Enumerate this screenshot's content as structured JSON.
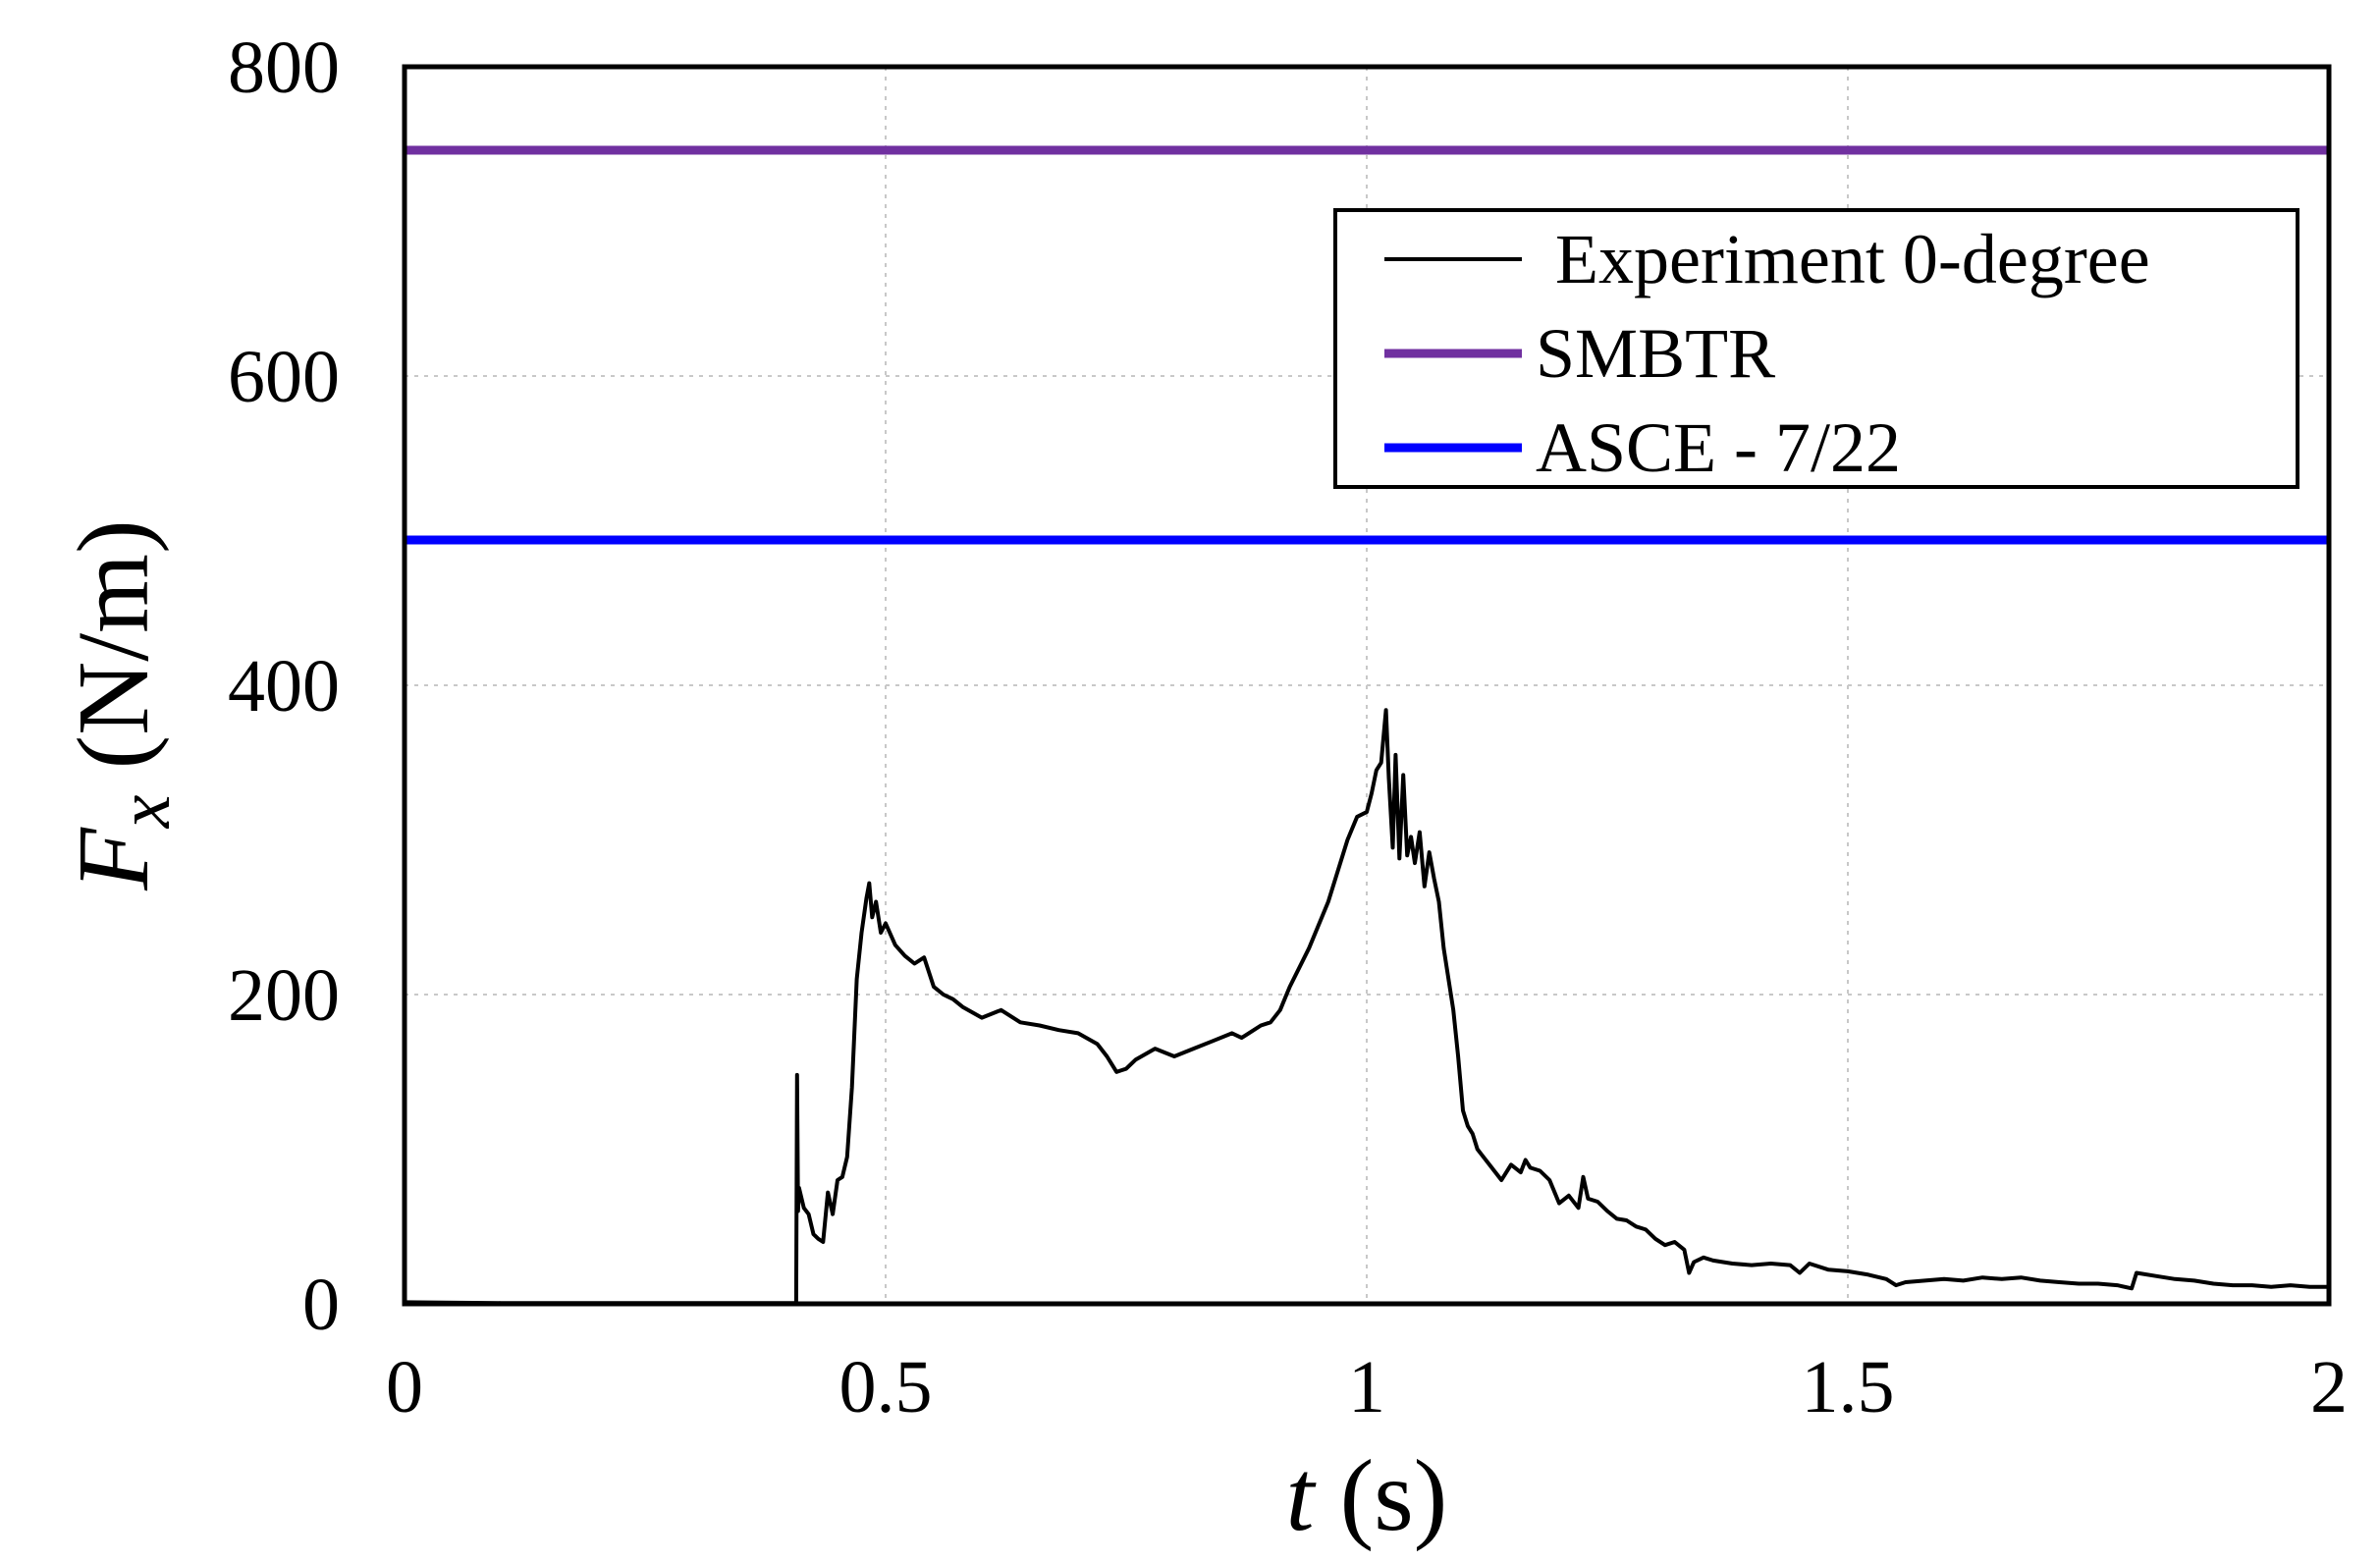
{
  "chart_data": {
    "type": "line",
    "xlabel": {
      "var": "t",
      "unit": " (s)"
    },
    "ylabel": {
      "var": "F",
      "sub": "x",
      "unit": " (N/m)"
    },
    "xlim": [
      0,
      2
    ],
    "ylim": [
      0,
      800
    ],
    "xticks": [
      0,
      0.5,
      1,
      1.5,
      2
    ],
    "xtick_labels": [
      "0",
      "0.5",
      "1",
      "1.5",
      "2"
    ],
    "yticks": [
      0,
      200,
      400,
      600,
      800
    ],
    "ytick_labels": [
      "0",
      "200",
      "400",
      "600",
      "800"
    ],
    "grid": true,
    "legend_position": "top-right",
    "series": [
      {
        "name": "Experiment 0-degree",
        "color": "#000000",
        "style": "line",
        "points": [
          [
            0,
            1
          ],
          [
            0.1,
            0.5
          ],
          [
            0.2,
            0.5
          ],
          [
            0.3,
            0.5
          ],
          [
            0.406,
            0.5
          ],
          [
            0.407,
            0
          ],
          [
            0.408,
            148
          ],
          [
            0.409,
            60
          ],
          [
            0.41,
            75
          ],
          [
            0.415,
            62
          ],
          [
            0.42,
            58
          ],
          [
            0.425,
            45
          ],
          [
            0.43,
            42
          ],
          [
            0.435,
            40
          ],
          [
            0.44,
            72
          ],
          [
            0.445,
            58
          ],
          [
            0.45,
            80
          ],
          [
            0.455,
            82
          ],
          [
            0.46,
            95
          ],
          [
            0.465,
            140
          ],
          [
            0.47,
            210
          ],
          [
            0.475,
            240
          ],
          [
            0.48,
            262
          ],
          [
            0.483,
            272
          ],
          [
            0.486,
            250
          ],
          [
            0.49,
            260
          ],
          [
            0.495,
            240
          ],
          [
            0.5,
            246
          ],
          [
            0.51,
            232
          ],
          [
            0.52,
            225
          ],
          [
            0.53,
            220
          ],
          [
            0.54,
            224
          ],
          [
            0.55,
            205
          ],
          [
            0.56,
            200
          ],
          [
            0.57,
            197
          ],
          [
            0.58,
            192
          ],
          [
            0.6,
            185
          ],
          [
            0.62,
            190
          ],
          [
            0.64,
            182
          ],
          [
            0.66,
            180
          ],
          [
            0.68,
            177
          ],
          [
            0.7,
            175
          ],
          [
            0.72,
            168
          ],
          [
            0.73,
            160
          ],
          [
            0.74,
            150
          ],
          [
            0.75,
            152
          ],
          [
            0.76,
            158
          ],
          [
            0.78,
            165
          ],
          [
            0.8,
            160
          ],
          [
            0.82,
            165
          ],
          [
            0.84,
            170
          ],
          [
            0.86,
            175
          ],
          [
            0.87,
            172
          ],
          [
            0.88,
            176
          ],
          [
            0.89,
            180
          ],
          [
            0.9,
            182
          ],
          [
            0.91,
            190
          ],
          [
            0.92,
            205
          ],
          [
            0.94,
            230
          ],
          [
            0.96,
            260
          ],
          [
            0.97,
            280
          ],
          [
            0.98,
            300
          ],
          [
            0.99,
            315
          ],
          [
            1.0,
            318
          ],
          [
            1.005,
            330
          ],
          [
            1.01,
            345
          ],
          [
            1.015,
            350
          ],
          [
            1.02,
            384
          ],
          [
            1.023,
            340
          ],
          [
            1.027,
            295
          ],
          [
            1.03,
            355
          ],
          [
            1.034,
            288
          ],
          [
            1.038,
            342
          ],
          [
            1.042,
            290
          ],
          [
            1.046,
            302
          ],
          [
            1.05,
            285
          ],
          [
            1.055,
            305
          ],
          [
            1.06,
            270
          ],
          [
            1.065,
            292
          ],
          [
            1.07,
            275
          ],
          [
            1.075,
            260
          ],
          [
            1.08,
            230
          ],
          [
            1.085,
            210
          ],
          [
            1.09,
            190
          ],
          [
            1.095,
            160
          ],
          [
            1.1,
            125
          ],
          [
            1.105,
            115
          ],
          [
            1.11,
            110
          ],
          [
            1.115,
            100
          ],
          [
            1.12,
            96
          ],
          [
            1.13,
            88
          ],
          [
            1.14,
            80
          ],
          [
            1.15,
            90
          ],
          [
            1.16,
            85
          ],
          [
            1.165,
            93
          ],
          [
            1.17,
            88
          ],
          [
            1.18,
            86
          ],
          [
            1.19,
            80
          ],
          [
            1.2,
            65
          ],
          [
            1.21,
            70
          ],
          [
            1.22,
            62
          ],
          [
            1.225,
            82
          ],
          [
            1.23,
            68
          ],
          [
            1.24,
            66
          ],
          [
            1.25,
            60
          ],
          [
            1.26,
            55
          ],
          [
            1.27,
            54
          ],
          [
            1.28,
            50
          ],
          [
            1.29,
            48
          ],
          [
            1.3,
            42
          ],
          [
            1.31,
            38
          ],
          [
            1.32,
            40
          ],
          [
            1.33,
            35
          ],
          [
            1.335,
            20
          ],
          [
            1.34,
            27
          ],
          [
            1.35,
            30
          ],
          [
            1.36,
            28
          ],
          [
            1.38,
            26
          ],
          [
            1.4,
            25
          ],
          [
            1.42,
            26
          ],
          [
            1.44,
            25
          ],
          [
            1.45,
            20
          ],
          [
            1.46,
            26
          ],
          [
            1.48,
            22
          ],
          [
            1.5,
            21
          ],
          [
            1.52,
            19
          ],
          [
            1.54,
            16
          ],
          [
            1.55,
            12
          ],
          [
            1.56,
            14
          ],
          [
            1.58,
            15
          ],
          [
            1.6,
            16
          ],
          [
            1.62,
            15
          ],
          [
            1.64,
            17
          ],
          [
            1.66,
            16
          ],
          [
            1.68,
            17
          ],
          [
            1.7,
            15
          ],
          [
            1.72,
            14
          ],
          [
            1.74,
            13
          ],
          [
            1.76,
            13
          ],
          [
            1.78,
            12
          ],
          [
            1.795,
            10
          ],
          [
            1.8,
            20
          ],
          [
            1.82,
            18
          ],
          [
            1.84,
            16
          ],
          [
            1.86,
            15
          ],
          [
            1.88,
            13
          ],
          [
            1.9,
            12
          ],
          [
            1.92,
            12
          ],
          [
            1.94,
            11
          ],
          [
            1.96,
            12
          ],
          [
            1.98,
            11
          ],
          [
            2.0,
            11
          ]
        ]
      },
      {
        "name": "SMBTR",
        "color": "#7030a0",
        "style": "hline",
        "value": 746
      },
      {
        "name": "ASCE - 7/22",
        "color": "#0000ff",
        "style": "hline",
        "value": 494
      }
    ]
  }
}
